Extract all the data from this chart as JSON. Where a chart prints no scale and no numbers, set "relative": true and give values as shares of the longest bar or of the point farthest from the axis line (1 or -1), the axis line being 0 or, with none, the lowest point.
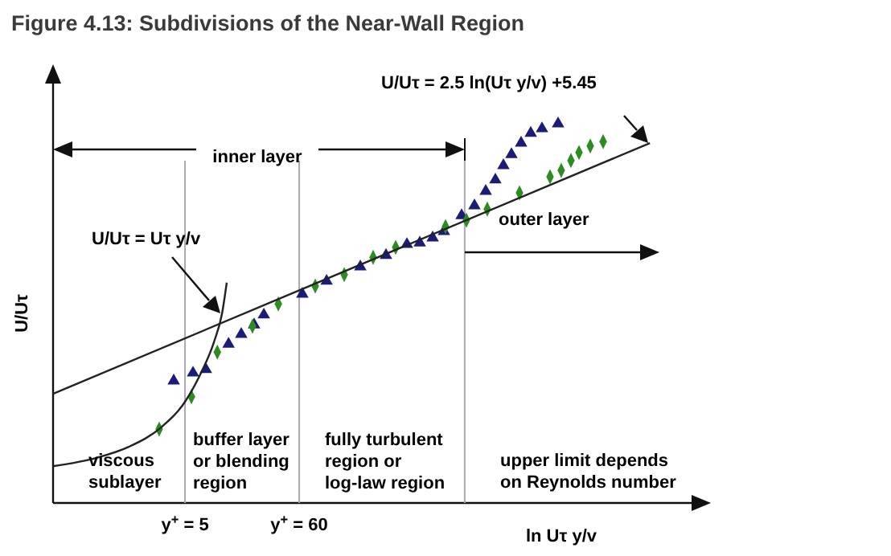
{
  "chart_data": {
    "type": "scatter",
    "title": "Figure 4.13:  Subdivisions of the Near-Wall Region",
    "xlabel": "ln Uτ y/v",
    "ylabel": "U/Uτ",
    "relative": true,
    "log": "x",
    "xlim": [
      0.283,
      307000
    ],
    "xticks": [
      {
        "value": 5,
        "label": "y$^{+}$ = 5"
      },
      {
        "value": 60,
        "label": "y$^{+}$ = 60"
      }
    ],
    "series": [
      {
        "marker": "triangle",
        "color": "#1c1c78",
        "x": [
          3.91,
          5.95,
          7.88,
          12.9,
          17.0,
          22.5,
          27.8,
          64.3,
          109,
          227,
          397,
          626,
          828,
          1096,
          1400,
          2057,
          2722,
          3478,
          4291,
          5112,
          6090,
          7513,
          9269,
          11840,
          16800
        ],
        "values": [
          0.322,
          0.343,
          0.352,
          0.419,
          0.445,
          0.47,
          0.496,
          0.551,
          0.585,
          0.623,
          0.653,
          0.682,
          0.686,
          0.699,
          0.716,
          0.758,
          0.784,
          0.822,
          0.852,
          0.89,
          0.919,
          0.949,
          0.975,
          0.987,
          1
        ]
      },
      {
        "marker": "diamond",
        "color": "#2e8b22",
        "x": [
          2.85,
          5.75,
          10.1,
          21.7,
          38.1,
          85.1,
          160,
          300,
          490,
          1450,
          2285,
          3600,
          7255,
          14100,
          18000,
          22240,
          26500,
          33850,
          44800
        ],
        "values": [
          0.195,
          0.28,
          0.398,
          0.466,
          0.525,
          0.572,
          0.602,
          0.648,
          0.674,
          0.729,
          0.746,
          0.775,
          0.818,
          0.86,
          0.877,
          0.903,
          0.924,
          0.941,
          0.953
        ]
      },
      {
        "type": "line",
        "marker": "none",
        "color": "#222222",
        "x": [
          0.283,
          124000
        ],
        "values": [
          0.288,
          0.949
        ]
      },
      {
        "type": "line",
        "marker": "none",
        "color": "#222222",
        "x": [
          0.283,
          0.729,
          1.47,
          2.96,
          5,
          7.09,
          9.38,
          11.2,
          12.4
        ],
        "values": [
          0.097,
          0.119,
          0.148,
          0.199,
          0.267,
          0.343,
          0.424,
          0.5,
          0.581
        ]
      }
    ],
    "ref_lines": [
      {
        "axis": "x",
        "value": 5,
        "label": null
      },
      {
        "axis": "x",
        "value": 60,
        "label": null
      },
      {
        "axis": "x",
        "value": 2200,
        "label": null
      }
    ],
    "annotations": [
      "U/Uτ = 2.5 ln(Uτ y/v) +5.45",
      "U/Uτ = Uτ y/v",
      "inner layer",
      "outer layer",
      "viscous\nsublayer",
      "buffer layer\nor blending\nregion",
      "fully turbulent\nregion or\nlog-law region",
      "upper limit depends\non Reynolds number"
    ]
  }
}
